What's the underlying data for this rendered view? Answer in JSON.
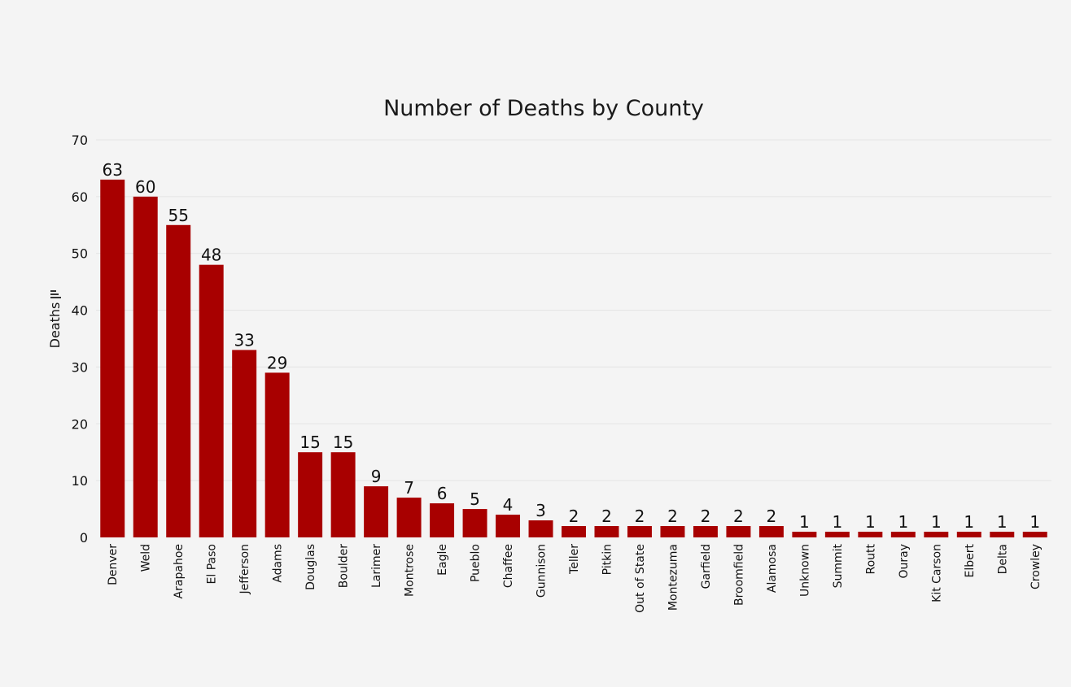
{
  "chart_data": {
    "type": "bar",
    "title": "Number of Deaths by County",
    "xlabel": "",
    "ylabel": "Deaths",
    "ylim": [
      0,
      70
    ],
    "yticks": [
      0,
      10,
      20,
      30,
      40,
      50,
      60,
      70
    ],
    "grid": true,
    "legend": "none",
    "bar_color": "#a80000",
    "categories": [
      "Denver",
      "Weld",
      "Arapahoe",
      "El Paso",
      "Jefferson",
      "Adams",
      "Douglas",
      "Boulder",
      "Larimer",
      "Montrose",
      "Eagle",
      "Pueblo",
      "Chaffee",
      "Gunnison",
      "Teller",
      "Pitkin",
      "Out of State",
      "Montezuma",
      "Garfield",
      "Broomfield",
      "Alamosa",
      "Unknown",
      "Summit",
      "Routt",
      "Ouray",
      "Kit Carson",
      "Elbert",
      "Delta",
      "Crowley"
    ],
    "values": [
      63,
      60,
      55,
      48,
      33,
      29,
      15,
      15,
      9,
      7,
      6,
      5,
      4,
      3,
      2,
      2,
      2,
      2,
      2,
      2,
      2,
      1,
      1,
      1,
      1,
      1,
      1,
      1,
      1
    ],
    "sort_icon": "sort-descending-icon"
  }
}
